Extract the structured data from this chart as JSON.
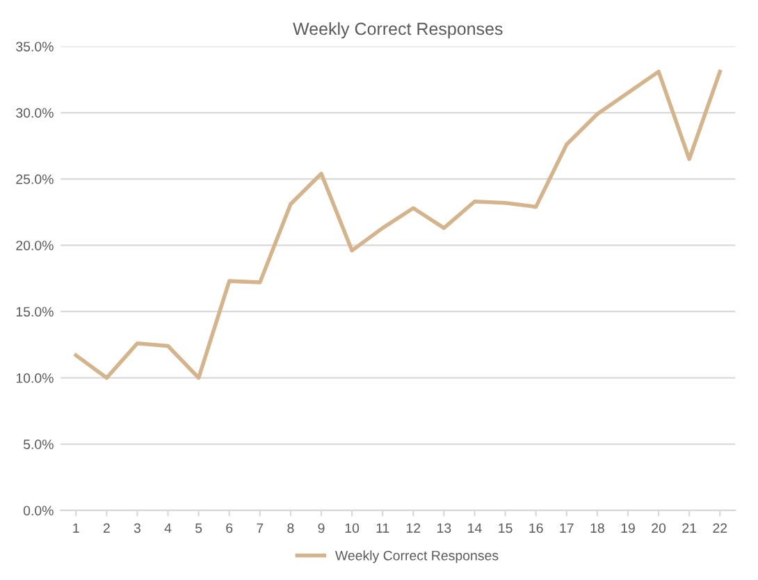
{
  "chart_data": {
    "type": "line",
    "title": "Weekly Correct Responses",
    "categories": [
      "1",
      "2",
      "3",
      "4",
      "5",
      "6",
      "7",
      "8",
      "9",
      "10",
      "11",
      "12",
      "13",
      "14",
      "15",
      "16",
      "17",
      "18",
      "19",
      "20",
      "21",
      "22"
    ],
    "series": [
      {
        "name": "Weekly Correct Responses",
        "color": "#d4b48c",
        "values": [
          11.7,
          10.0,
          12.6,
          12.4,
          10.0,
          17.3,
          17.2,
          23.1,
          25.4,
          19.6,
          21.3,
          22.8,
          21.3,
          23.3,
          23.2,
          22.9,
          27.6,
          29.9,
          31.5,
          33.1,
          26.5,
          33.1
        ]
      }
    ],
    "ylim": [
      0,
      35
    ],
    "yticks": [
      {
        "value": 0,
        "label": "0.0%"
      },
      {
        "value": 5,
        "label": "5.0%"
      },
      {
        "value": 10,
        "label": "10.0%"
      },
      {
        "value": 15,
        "label": "15.0%"
      },
      {
        "value": 20,
        "label": "20.0%"
      },
      {
        "value": 25,
        "label": "25.0%"
      },
      {
        "value": 30,
        "label": "30.0%"
      },
      {
        "value": 35,
        "label": "35.0%"
      }
    ],
    "grid": "y",
    "legend": "bottom",
    "marker": "none",
    "line_style": "solid"
  }
}
